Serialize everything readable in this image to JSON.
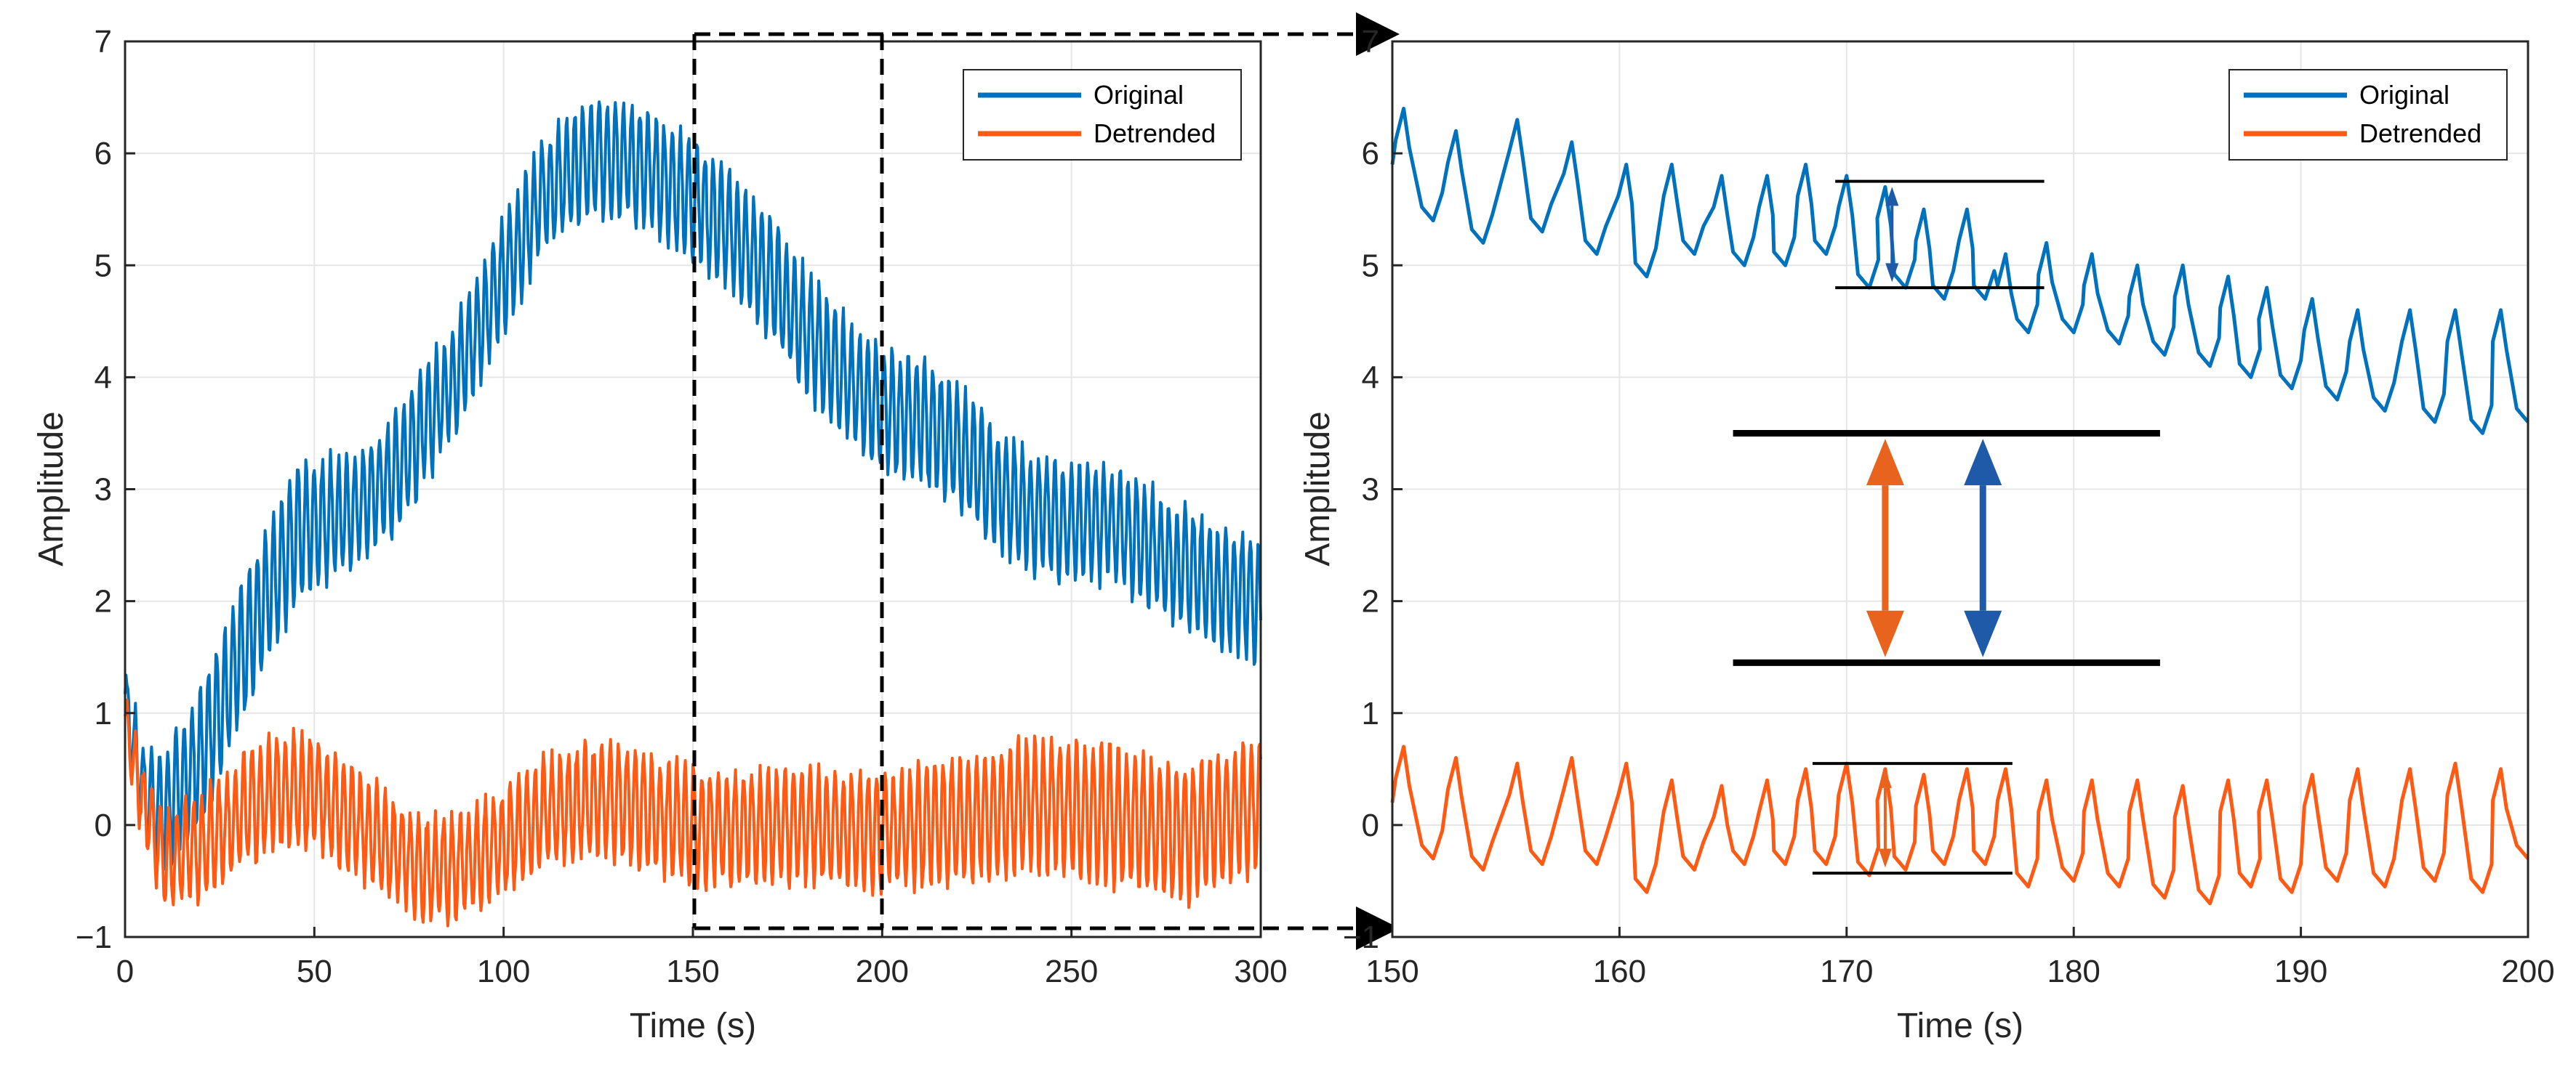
{
  "colors": {
    "original": "#0072BD",
    "detrended": "#FF5A14",
    "arrow_orange": "#E8641E",
    "arrow_blue": "#1E5AA8",
    "grid": "#E6E6E6",
    "axis": "#262626"
  },
  "chart_data": [
    {
      "type": "line",
      "panel": "left",
      "title": "",
      "xlabel": "Time (s)",
      "ylabel": "Amplitude",
      "xlim": [
        0,
        300
      ],
      "ylim": [
        -1,
        7
      ],
      "xticks": [
        0,
        50,
        100,
        150,
        200,
        250,
        300
      ],
      "yticks": [
        -1,
        0,
        1,
        2,
        3,
        4,
        5,
        6,
        7
      ],
      "xtick_labels": [
        "0",
        "50",
        "100",
        "150",
        "200",
        "250",
        "300"
      ],
      "ytick_labels": [
        "−1",
        "0",
        "1",
        "2",
        "3",
        "4",
        "5",
        "6",
        "7"
      ],
      "grid": true,
      "legend": "top-right",
      "legend_entries": [
        "Original",
        "Detrended"
      ],
      "zoom_window": [
        150,
        200
      ],
      "series": [
        {
          "name": "Original",
          "color": "#0072BD",
          "trend": {
            "x": [
              0,
              5,
              10,
              20,
              30,
              40,
              45,
              50,
              60,
              70,
              80,
              90,
              100,
              110,
              120,
              130,
              140,
              150,
              160,
              170,
              180,
              190,
              200,
              210,
              220,
              230,
              240,
              250,
              260,
              270,
              280,
              290,
              300
            ],
            "y": [
              1.1,
              0.3,
              0.1,
              0.6,
              1.5,
              2.2,
              2.6,
              2.7,
              2.8,
              3.1,
              3.6,
              4.2,
              4.9,
              5.6,
              5.9,
              6.0,
              5.8,
              5.6,
              5.3,
              4.9,
              4.4,
              4.0,
              3.7,
              3.6,
              3.4,
              3.0,
              2.8,
              2.7,
              2.7,
              2.5,
              2.3,
              2.1,
              2.0
            ]
          },
          "oscillation_amplitude": {
            "x": [
              0,
              10,
              20,
              40,
              60,
              100,
              130,
              150,
              200,
              250,
              300
            ],
            "y": [
              0.3,
              0.5,
              0.6,
              0.6,
              0.5,
              0.5,
              0.5,
              0.5,
              0.55,
              0.5,
              0.55
            ]
          }
        },
        {
          "name": "Detrended",
          "color": "#FF5A14",
          "trend": {
            "x": [
              0,
              5,
              10,
              20,
              30,
              40,
              50,
              60,
              70,
              80,
              90,
              100,
              110,
              120,
              130,
              140,
              150,
              160,
              170,
              180,
              190,
              200,
              210,
              220,
              230,
              240,
              250,
              260,
              270,
              280,
              290,
              300
            ],
            "y": [
              0.9,
              0.2,
              -0.3,
              -0.2,
              0.1,
              0.3,
              0.3,
              0.05,
              -0.2,
              -0.4,
              -0.35,
              -0.15,
              0.1,
              0.2,
              0.2,
              0.1,
              0.0,
              -0.05,
              0.0,
              0.0,
              -0.05,
              -0.05,
              0.0,
              0.05,
              0.1,
              0.2,
              0.15,
              0.1,
              0.0,
              -0.1,
              0.05,
              0.2
            ]
          },
          "oscillation_amplitude": {
            "x": [
              0,
              10,
              20,
              40,
              60,
              100,
              130,
              150,
              200,
              250,
              300
            ],
            "y": [
              0.3,
              0.4,
              0.45,
              0.5,
              0.45,
              0.45,
              0.5,
              0.5,
              0.5,
              0.6,
              0.6
            ]
          }
        }
      ]
    },
    {
      "type": "line",
      "panel": "right",
      "title": "",
      "xlabel": "Time (s)",
      "ylabel": "Amplitude",
      "xlim": [
        150,
        200
      ],
      "ylim": [
        -1,
        7
      ],
      "xticks": [
        150,
        160,
        170,
        180,
        190,
        200
      ],
      "yticks": [
        -1,
        0,
        1,
        2,
        3,
        4,
        5,
        6,
        7
      ],
      "xtick_labels": [
        "150",
        "160",
        "170",
        "180",
        "190",
        "200"
      ],
      "ytick_labels": [
        "−1",
        "0",
        "1",
        "2",
        "3",
        "4",
        "5",
        "6",
        "7"
      ],
      "grid": true,
      "legend": "top-right",
      "legend_entries": [
        "Original",
        "Detrended"
      ],
      "series": [
        {
          "name": "Original",
          "color": "#0072BD",
          "peaks": {
            "x": [
              150.5,
              152.8,
              155.5,
              157.9,
              160.3,
              162.3,
              164.5,
              166.5,
              168.2,
              170.0,
              171.7,
              173.4,
              175.3,
              177.0,
              178.8,
              180.8,
              182.8,
              184.8,
              186.8,
              188.5,
              190.5,
              192.5,
              194.8,
              196.8,
              198.8
            ],
            "y": [
              6.4,
              6.2,
              6.3,
              6.1,
              5.9,
              5.9,
              5.8,
              5.8,
              5.9,
              5.8,
              5.7,
              5.5,
              5.5,
              5.1,
              5.2,
              5.1,
              5.0,
              5.0,
              4.9,
              4.8,
              4.7,
              4.6,
              4.6,
              4.6,
              4.6
            ]
          },
          "troughs": {
            "x": [
              151.8,
              154.0,
              156.6,
              159.0,
              161.2,
              163.3,
              165.5,
              167.3,
              169.1,
              171.0,
              172.6,
              174.3,
              176.1,
              178.0,
              180.0,
              182.0,
              184.0,
              186.0,
              187.8,
              189.6,
              191.6,
              193.7,
              195.9,
              198.0,
              200.0
            ],
            "y": [
              5.4,
              5.2,
              5.3,
              5.1,
              4.9,
              5.1,
              5.0,
              5.0,
              5.1,
              4.8,
              4.8,
              4.7,
              4.7,
              4.4,
              4.4,
              4.3,
              4.2,
              4.1,
              4.0,
              3.9,
              3.8,
              3.7,
              3.6,
              3.5,
              3.6
            ]
          }
        },
        {
          "name": "Detrended",
          "color": "#FF5A14",
          "peaks": {
            "x": [
              150.5,
              152.8,
              155.5,
              157.9,
              160.3,
              162.3,
              164.5,
              166.5,
              168.2,
              170.0,
              171.7,
              173.4,
              175.3,
              177.0,
              178.8,
              180.8,
              182.8,
              184.8,
              186.8,
              188.5,
              190.5,
              192.5,
              194.8,
              196.8,
              198.8
            ],
            "y": [
              0.7,
              0.6,
              0.55,
              0.6,
              0.55,
              0.4,
              0.35,
              0.4,
              0.5,
              0.55,
              0.5,
              0.45,
              0.5,
              0.5,
              0.4,
              0.4,
              0.4,
              0.35,
              0.4,
              0.4,
              0.45,
              0.5,
              0.5,
              0.55,
              0.5
            ]
          },
          "troughs": {
            "x": [
              151.8,
              154.0,
              156.6,
              159.0,
              161.2,
              163.3,
              165.5,
              167.3,
              169.1,
              171.0,
              172.6,
              174.3,
              176.1,
              178.0,
              180.0,
              182.0,
              184.0,
              186.0,
              187.8,
              189.6,
              191.6,
              193.7,
              195.9,
              198.0,
              200.0
            ],
            "y": [
              -0.3,
              -0.4,
              -0.35,
              -0.35,
              -0.6,
              -0.4,
              -0.35,
              -0.35,
              -0.35,
              -0.45,
              -0.4,
              -0.35,
              -0.35,
              -0.55,
              -0.5,
              -0.55,
              -0.65,
              -0.7,
              -0.55,
              -0.6,
              -0.5,
              -0.55,
              -0.5,
              -0.6,
              -0.3
            ]
          }
        }
      ],
      "annotations": {
        "original_range_lines": [
          5.75,
          4.8
        ],
        "detrended_range_lines": [
          0.55,
          -0.43
        ],
        "reference_lines": [
          3.5,
          1.45
        ],
        "arrows": [
          "orange double-headed",
          "blue double-headed"
        ]
      }
    }
  ]
}
